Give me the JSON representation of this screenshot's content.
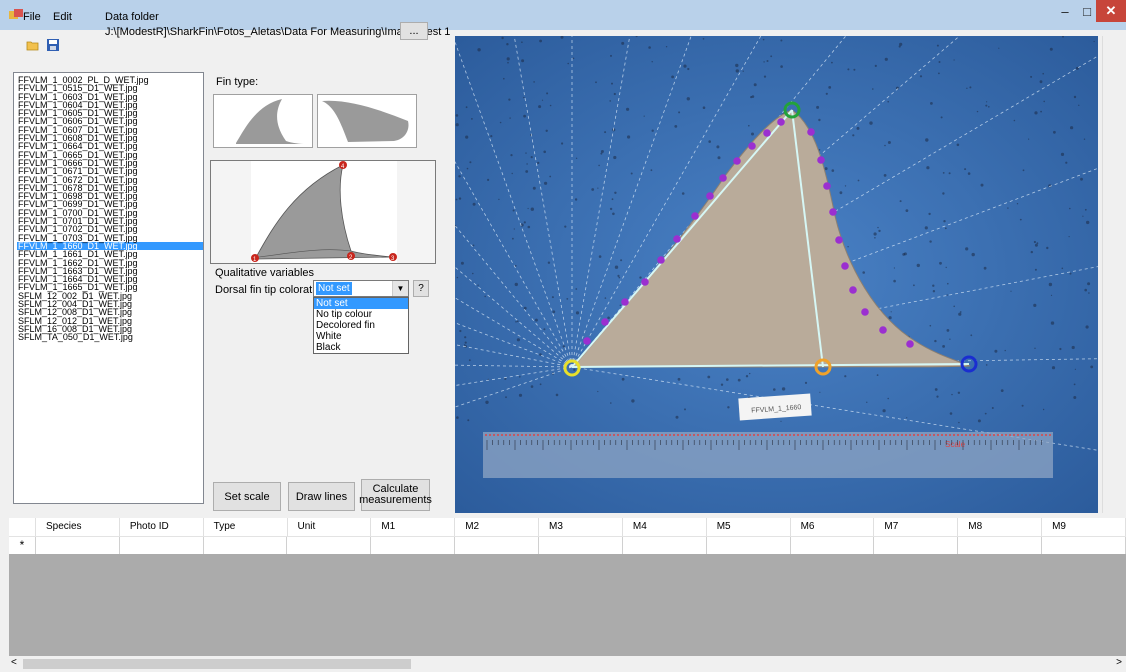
{
  "menu": {
    "file": "File",
    "edit": "Edit"
  },
  "toolbar": {
    "open_icon": "folder-open-icon",
    "save_icon": "floppy-save-icon"
  },
  "folder": {
    "label": "Data folder",
    "path": "J:\\[ModestR]\\SharkFin\\Fotos_Aletas\\Data For Measuring\\Images test 1",
    "browse": "..."
  },
  "files": [
    "FFVLM_1_0002_PL_D_WET.jpg",
    "FFVLM_1_0515_D1_WET.jpg",
    "FFVLM_1_0603_D1_WET.jpg",
    "FFVLM_1_0604_D1_WET.jpg",
    "FFVLM_1_0605_D1_WET.jpg",
    "FFVLM_1_0606_D1_WET.jpg",
    "FFVLM_1_0607_D1_WET.jpg",
    "FFVLM_1_0608_D1_WET.jpg",
    "FFVLM_1_0664_D1_WET.jpg",
    "FFVLM_1_0665_D1_WET.jpg",
    "FFVLM_1_0666_D1_WET.jpg",
    "FFVLM_1_0671_D1_WET.jpg",
    "FFVLM_1_0672_D1_WET.jpg",
    "FFVLM_1_0678_D1_WET.jpg",
    "FFVLM_1_0698_D1_WET.jpg",
    "FFVLM_1_0699_D1_WET.jpg",
    "FFVLM_1_0700_D1_WET.jpg",
    "FFVLM_1_0701_D1_WET.jpg",
    "FFVLM_1_0702_D1_WET.jpg",
    "FFVLM_1_0703_D1_WET.jpg",
    "FFVLM_1_1660_D1_WET.jpg",
    "FFVLM_1_1661_D1_WET.jpg",
    "FFVLM_1_1662_D1_WET.jpg",
    "FFVLM_1_1663_D1_WET.jpg",
    "FFVLM_1_1664_D1_WET.jpg",
    "FFVLM_1_1665_D1_WET.jpg",
    "SFLM_12_002_D1_WET.jpg",
    "SFLM_12_004_D1_WET.jpg",
    "SFLM_12_008_D1_WET.jpg",
    "SFLM_12_012_D1_WET.jpg",
    "SFLM_16_008_D1_WET.jpg",
    "SFLM_TA_050_D1_WET.jpg"
  ],
  "selected_file": "FFVLM_1_1660_D1_WET.jpg",
  "fin_type": {
    "label": "Fin type:"
  },
  "qualitative": {
    "label": "Qualitative variables",
    "dorsal_label": "Dorsal fin tip coloration:",
    "selected": "Not set",
    "help": "?",
    "options": [
      "Not set",
      "No tip colour",
      "Decolored fin",
      "White",
      "Black"
    ]
  },
  "preview_markers": {
    "tip": "4",
    "base_front": "1",
    "base_mid": "2",
    "base_rear": "3"
  },
  "buttons": {
    "set_scale": "Set scale",
    "draw_lines": "Draw lines",
    "calc": "Calculate measurements"
  },
  "photo": {
    "tag": "FFVLM_1_1660",
    "ruler_label": "Scale"
  },
  "grid": {
    "row_marker": "*",
    "columns": [
      "Species",
      "Photo ID",
      "Type",
      "Unit",
      "M1",
      "M2",
      "M3",
      "M4",
      "M5",
      "M6",
      "M7",
      "M8",
      "M9"
    ]
  },
  "colors": {
    "selection": "#3399ff",
    "background_blue": "#3b6fb5",
    "fin": "#b8aa98",
    "landmark": "#9b2fd0",
    "line": "#c8f0f0"
  }
}
